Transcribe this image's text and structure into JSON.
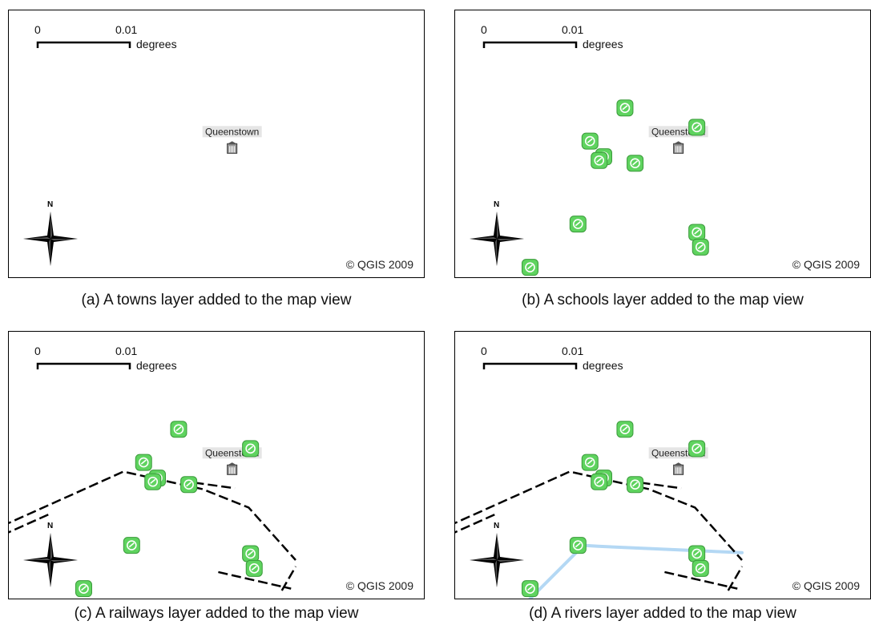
{
  "scale_bar": {
    "start_label": "0",
    "end_label": "0.01",
    "unit_label": "degrees"
  },
  "north_arrow": {
    "label": "N"
  },
  "copyright": "© QGIS 2009",
  "colors": {
    "school": "#5fd35f",
    "railway": "#000000",
    "river": "#b4d8f4",
    "town_label_halo": "#dcdcdc"
  },
  "towns": [
    {
      "name": "Queenstown",
      "lon": 0.0211,
      "lat": 0.0118
    }
  ],
  "schools": [
    {
      "lon": 0.0153,
      "lat": 0.0162
    },
    {
      "lon": 0.0231,
      "lat": 0.0141
    },
    {
      "lon": 0.0115,
      "lat": 0.0126
    },
    {
      "lon": 0.013,
      "lat": 0.0109
    },
    {
      "lon": 0.0125,
      "lat": 0.0105
    },
    {
      "lon": 0.0164,
      "lat": 0.0102
    },
    {
      "lon": 0.0102,
      "lat": 0.0036
    },
    {
      "lon": 0.0231,
      "lat": 0.0027
    },
    {
      "lon": 0.0235,
      "lat": 0.0011
    },
    {
      "lon": 0.005,
      "lat": -0.0011
    }
  ],
  "railways": [
    [
      [
        -0.0052,
        0.0051
      ],
      [
        0.0093,
        0.0116
      ],
      [
        0.0179,
        0.0097
      ],
      [
        0.0229,
        0.0077
      ],
      [
        0.028,
        0.002
      ]
    ],
    [
      [
        -0.0052,
        0.0041
      ],
      [
        0.0013,
        0.007
      ]
    ],
    [
      [
        0.017,
        0.0104
      ],
      [
        0.0214,
        0.0098
      ]
    ],
    [
      [
        0.0196,
        0.0007
      ],
      [
        0.0275,
        -0.0011
      ]
    ],
    [
      [
        0.0265,
        -0.0013
      ],
      [
        0.028,
        0.0013
      ]
    ]
  ],
  "rivers": [
    [
      [
        0.005,
        -0.0022
      ],
      [
        0.0108,
        0.0036
      ],
      [
        0.0124,
        0.0035
      ],
      [
        0.028,
        0.0028
      ]
    ]
  ],
  "panels": [
    {
      "id": "a",
      "caption": "(a)  A towns layer added to the map view",
      "layers": [
        "towns"
      ]
    },
    {
      "id": "b",
      "caption": "(b)  A schools layer added to the map view",
      "layers": [
        "towns",
        "schools"
      ]
    },
    {
      "id": "c",
      "caption": "(c)  A railways layer added to the map view",
      "layers": [
        "towns",
        "schools",
        "railways"
      ]
    },
    {
      "id": "d",
      "caption": "(d)  A rivers layer added to the map view",
      "layers": [
        "towns",
        "schools",
        "railways",
        "rivers"
      ]
    }
  ]
}
